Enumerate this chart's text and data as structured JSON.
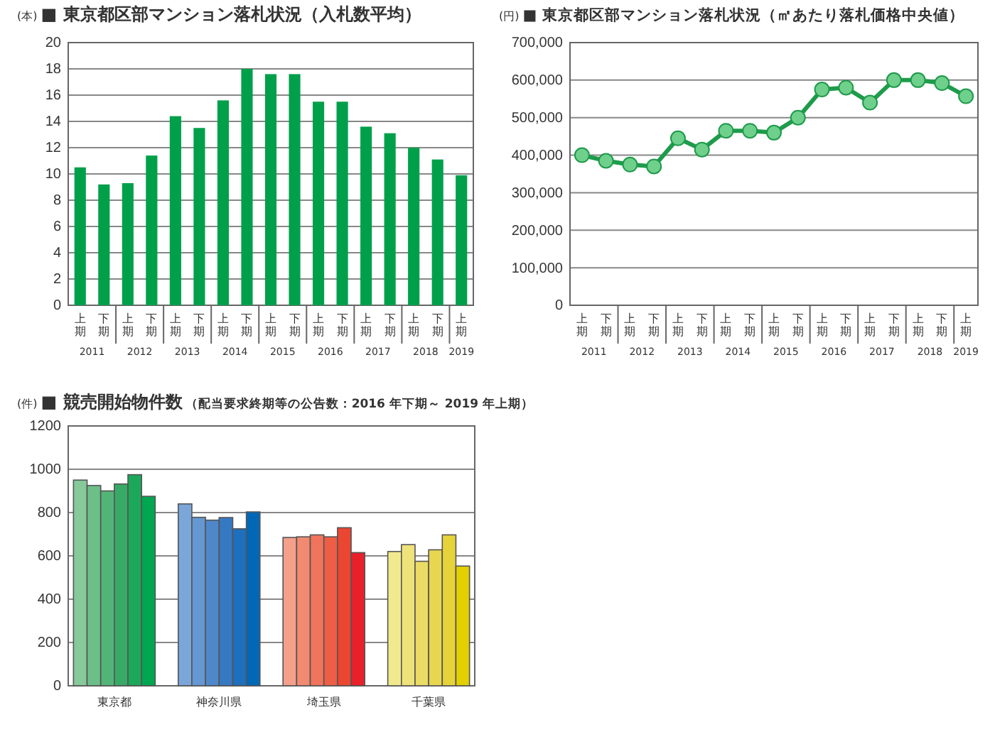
{
  "chart_data": [
    {
      "type": "bar",
      "title": "■ 東京都区部マンション落札状況（入札数平均）",
      "ylabel": "(本)",
      "categories": [
        "上期",
        "下期",
        "上期",
        "下期",
        "上期",
        "下期",
        "上期",
        "下期",
        "上期",
        "下期",
        "上期",
        "下期",
        "上期",
        "下期",
        "上期",
        "下期",
        "上期"
      ],
      "annotations": [
        "2011",
        "2012",
        "2013",
        "2014",
        "2015",
        "2016",
        "2017",
        "2018",
        "2019"
      ],
      "values": [
        10.5,
        9.2,
        9.3,
        11.4,
        14.4,
        13.5,
        15.6,
        18.0,
        17.6,
        17.6,
        15.5,
        15.5,
        13.6,
        13.1,
        12.0,
        11.1,
        9.9
      ],
      "color": "#00a04a",
      "ylim": [
        0,
        20
      ],
      "yticks": [
        0,
        2,
        4,
        6,
        8,
        10,
        12,
        14,
        16,
        18,
        20
      ],
      "grid": "y"
    },
    {
      "type": "line",
      "title": "■ 東京都区部マンション落札状況（㎡あたり落札価格中央値）",
      "ylabel": "(円)",
      "categories": [
        "上期",
        "下期",
        "上期",
        "下期",
        "上期",
        "下期",
        "上期",
        "下期",
        "上期",
        "下期",
        "上期",
        "下期",
        "上期",
        "下期",
        "上期",
        "下期",
        "上期"
      ],
      "annotations": [
        "2011",
        "2012",
        "2013",
        "2014",
        "2015",
        "2016",
        "2017",
        "2018",
        "2019"
      ],
      "values": [
        400000,
        385000,
        375000,
        370000,
        445000,
        415000,
        465000,
        465000,
        460000,
        500000,
        575000,
        580000,
        540000,
        600000,
        600000,
        592000,
        557000
      ],
      "color": "#1e9b4b",
      "marker": "circle",
      "line_style": "solid",
      "ylim": [
        0,
        700000
      ],
      "yticks": [
        {
          "value": 0,
          "label": "0"
        },
        {
          "value": 100000,
          "label": "100,000"
        },
        {
          "value": 200000,
          "label": "200,000"
        },
        {
          "value": 300000,
          "label": "300,000"
        },
        {
          "value": 400000,
          "label": "400,000"
        },
        {
          "value": 500000,
          "label": "500,000"
        },
        {
          "value": 600000,
          "label": "600,000"
        },
        {
          "value": 700000,
          "label": "700,000"
        }
      ],
      "grid": "y"
    },
    {
      "type": "bar",
      "title": "■ 競売開始物件数",
      "subtitle": "（配当要求終期等の公告数：2016 年下期～ 2019 年上期）",
      "ylabel": "(件)",
      "categories": [
        "東京都",
        "神奈川県",
        "埼玉県",
        "千葉県"
      ],
      "ylim": [
        0,
        1200
      ],
      "yticks": [
        0,
        200,
        400,
        600,
        800,
        1000,
        1200
      ],
      "grid": "y",
      "series": [
        {
          "values": [
            950,
            840,
            685,
            620
          ],
          "colors": [
            "#86c99a",
            "#7ba6da",
            "#f4a08a",
            "#f1e98e"
          ]
        },
        {
          "values": [
            925,
            778,
            688,
            652
          ],
          "colors": [
            "#6cbf88",
            "#6597d2",
            "#f28a72",
            "#eee27a"
          ]
        },
        {
          "values": [
            900,
            765,
            697,
            575
          ],
          "colors": [
            "#52b577",
            "#4e88ca",
            "#f0745c",
            "#ebdc66"
          ]
        },
        {
          "values": [
            932,
            777,
            688,
            628
          ],
          "colors": [
            "#37ab66",
            "#3679c3",
            "#ee5e46",
            "#e8d650"
          ]
        },
        {
          "values": [
            975,
            725,
            730,
            697
          ],
          "colors": [
            "#1ca85b",
            "#1e6fbe",
            "#eb4632",
            "#e6d33a"
          ]
        },
        {
          "values": [
            875,
            803,
            615,
            553
          ],
          "colors": [
            "#00a650",
            "#0068b7",
            "#e8202a",
            "#e3d000"
          ]
        }
      ]
    }
  ]
}
